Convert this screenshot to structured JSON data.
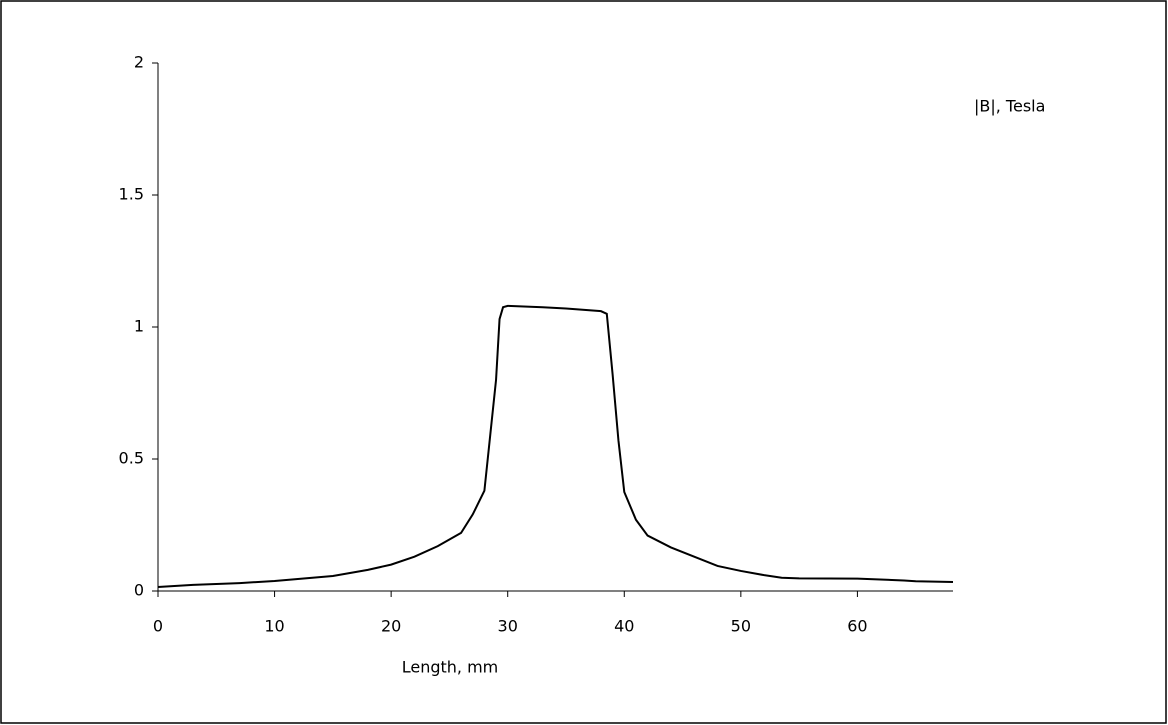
{
  "chart_data": {
    "type": "line",
    "x_label": "Length, mm",
    "x": [
      0,
      3,
      7,
      10,
      15,
      18,
      20,
      22,
      24,
      26,
      27,
      28,
      28.5,
      29,
      29.3,
      29.6,
      30,
      33,
      35,
      38,
      38.5,
      39,
      39.5,
      40,
      41,
      42,
      44,
      46,
      48,
      50,
      52,
      53.5,
      55,
      60,
      64,
      65,
      68.2
    ],
    "series": [
      {
        "name": "|B|, Tesla",
        "color": "#000000",
        "values": [
          0.015,
          0.023,
          0.03,
          0.038,
          0.057,
          0.08,
          0.1,
          0.13,
          0.17,
          0.22,
          0.29,
          0.38,
          0.59,
          0.8,
          1.03,
          1.075,
          1.08,
          1.075,
          1.07,
          1.06,
          1.05,
          0.82,
          0.57,
          0.375,
          0.27,
          0.21,
          0.165,
          0.13,
          0.095,
          0.076,
          0.06,
          0.05,
          0.048,
          0.047,
          0.04,
          0.037,
          0.034
        ]
      }
    ],
    "xlim": [
      0,
      68.2
    ],
    "xticks": [
      0,
      10,
      20,
      30,
      40,
      50,
      60
    ],
    "ylim": [
      0,
      2
    ],
    "yticks": [
      0,
      0.5,
      1,
      1.5,
      2
    ]
  }
}
